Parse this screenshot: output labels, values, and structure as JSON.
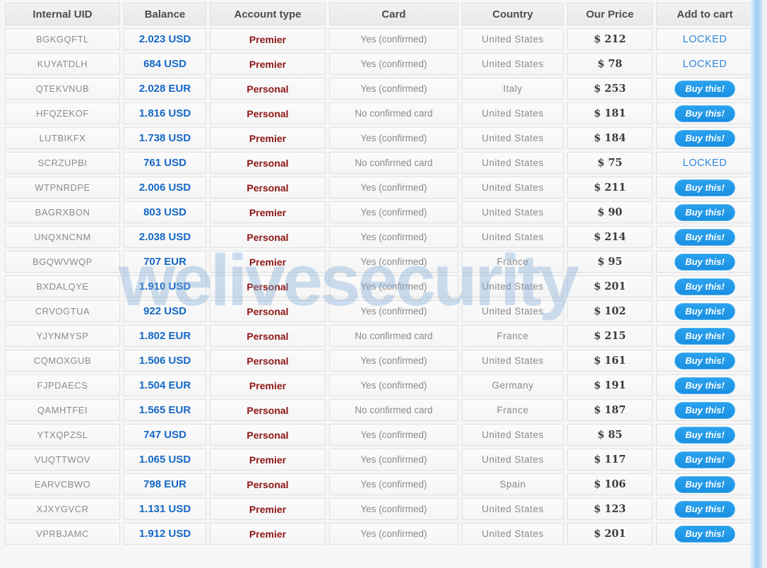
{
  "watermark_text": "welivesecurity",
  "colors": {
    "balance_blue": "#1568c6",
    "account_type_red": "#8e1414",
    "buy_button_blue": "#1b90e2",
    "locked_blue": "#2d84d8",
    "header_text": "#4d4d4d",
    "muted_text": "#8a8a8a",
    "watermark_blue": "#7daad4"
  },
  "table": {
    "columns": [
      {
        "key": "uid",
        "label": "Internal UID"
      },
      {
        "key": "balance",
        "label": "Balance"
      },
      {
        "key": "type",
        "label": "Account type"
      },
      {
        "key": "card",
        "label": "Card"
      },
      {
        "key": "country",
        "label": "Country"
      },
      {
        "key": "price",
        "label": "Our Price"
      },
      {
        "key": "action",
        "label": "Add to cart"
      }
    ],
    "rows": [
      {
        "uid": "BGKGQFTL",
        "balance": "2.023 USD",
        "type": "Premier",
        "card": "Yes (confirmed)",
        "country": "United States",
        "price": "$ 212",
        "action": "LOCKED"
      },
      {
        "uid": "KUYATDLH",
        "balance": "684 USD",
        "type": "Premier",
        "card": "Yes (confirmed)",
        "country": "United States",
        "price": "$ 78",
        "action": "LOCKED"
      },
      {
        "uid": "QTEKVNUB",
        "balance": "2.028 EUR",
        "type": "Personal",
        "card": "Yes (confirmed)",
        "country": "Italy",
        "price": "$ 253",
        "action": "Buy this!"
      },
      {
        "uid": "HFQZEKOF",
        "balance": "1.816 USD",
        "type": "Personal",
        "card": "No confirmed card",
        "country": "United States",
        "price": "$ 181",
        "action": "Buy this!"
      },
      {
        "uid": "LUTBIKFX",
        "balance": "1.738 USD",
        "type": "Premier",
        "card": "Yes (confirmed)",
        "country": "United States",
        "price": "$ 184",
        "action": "Buy this!"
      },
      {
        "uid": "SCRZUPBI",
        "balance": "761 USD",
        "type": "Personal",
        "card": "No confirmed card",
        "country": "United States",
        "price": "$ 75",
        "action": "LOCKED"
      },
      {
        "uid": "WTPNRDPE",
        "balance": "2.006 USD",
        "type": "Personal",
        "card": "Yes (confirmed)",
        "country": "United States",
        "price": "$ 211",
        "action": "Buy this!"
      },
      {
        "uid": "BAGRXBON",
        "balance": "803 USD",
        "type": "Premier",
        "card": "Yes (confirmed)",
        "country": "United States",
        "price": "$ 90",
        "action": "Buy this!"
      },
      {
        "uid": "UNQXNCNM",
        "balance": "2.038 USD",
        "type": "Personal",
        "card": "Yes (confirmed)",
        "country": "United States",
        "price": "$ 214",
        "action": "Buy this!"
      },
      {
        "uid": "BGQWVWQP",
        "balance": "707 EUR",
        "type": "Premier",
        "card": "Yes (confirmed)",
        "country": "France",
        "price": "$ 95",
        "action": "Buy this!"
      },
      {
        "uid": "BXDALQYE",
        "balance": "1.910 USD",
        "type": "Personal",
        "card": "Yes (confirmed)",
        "country": "United States",
        "price": "$ 201",
        "action": "Buy this!"
      },
      {
        "uid": "CRVOGTUA",
        "balance": "922 USD",
        "type": "Personal",
        "card": "Yes (confirmed)",
        "country": "United States",
        "price": "$ 102",
        "action": "Buy this!"
      },
      {
        "uid": "YJYNMYSP",
        "balance": "1.802 EUR",
        "type": "Personal",
        "card": "No confirmed card",
        "country": "France",
        "price": "$ 215",
        "action": "Buy this!"
      },
      {
        "uid": "CQMOXGUB",
        "balance": "1.506 USD",
        "type": "Personal",
        "card": "Yes (confirmed)",
        "country": "United States",
        "price": "$ 161",
        "action": "Buy this!"
      },
      {
        "uid": "FJPDAECS",
        "balance": "1.504 EUR",
        "type": "Premier",
        "card": "Yes (confirmed)",
        "country": "Germany",
        "price": "$ 191",
        "action": "Buy this!"
      },
      {
        "uid": "QAMHTFEI",
        "balance": "1.565 EUR",
        "type": "Personal",
        "card": "No confirmed card",
        "country": "France",
        "price": "$ 187",
        "action": "Buy this!"
      },
      {
        "uid": "YTXQPZSL",
        "balance": "747 USD",
        "type": "Personal",
        "card": "Yes (confirmed)",
        "country": "United States",
        "price": "$ 85",
        "action": "Buy this!"
      },
      {
        "uid": "VUQTTWOV",
        "balance": "1.065 USD",
        "type": "Premier",
        "card": "Yes (confirmed)",
        "country": "United States",
        "price": "$ 117",
        "action": "Buy this!"
      },
      {
        "uid": "EARVCBWO",
        "balance": "798 EUR",
        "type": "Personal",
        "card": "Yes (confirmed)",
        "country": "Spain",
        "price": "$ 106",
        "action": "Buy this!"
      },
      {
        "uid": "XJXYGVCR",
        "balance": "1.131 USD",
        "type": "Premier",
        "card": "Yes (confirmed)",
        "country": "United States",
        "price": "$ 123",
        "action": "Buy this!"
      },
      {
        "uid": "VPRBJAMC",
        "balance": "1.912 USD",
        "type": "Premier",
        "card": "Yes (confirmed)",
        "country": "United States",
        "price": "$ 201",
        "action": "Buy this!"
      }
    ]
  }
}
